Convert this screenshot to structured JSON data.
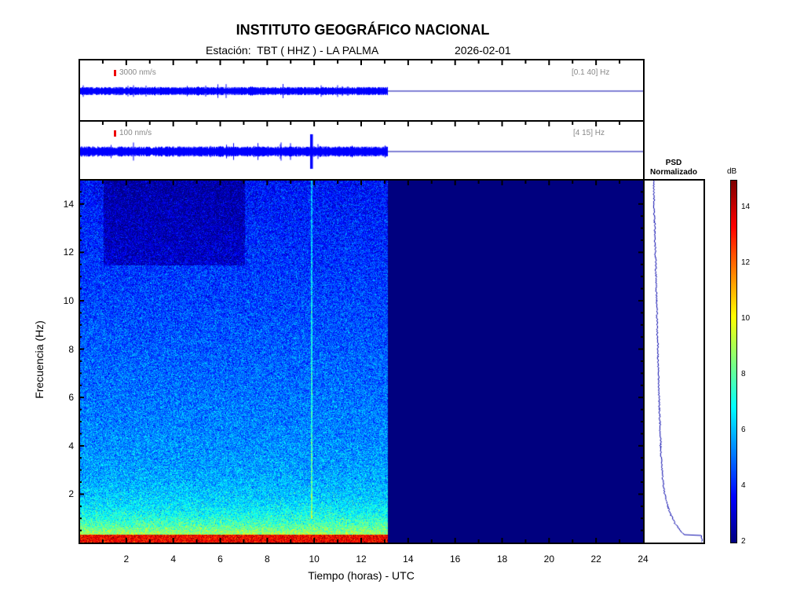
{
  "header": {
    "title": "INSTITUTO GEOGRÁFICO NACIONAL",
    "station": "Estación:  TBT ( HHZ ) - LA PALMA",
    "date": "2026-02-01"
  },
  "traces": [
    {
      "scale_label": "3000 nm/s",
      "band_label": "[0.1 40] Hz",
      "color": "#0000ff"
    },
    {
      "scale_label": "100 nm/s",
      "band_label": "[4 15] Hz",
      "color": "#0000ff"
    }
  ],
  "psd": {
    "title_line1": "PSD",
    "title_line2": "Normalizado",
    "color": "#0000aa"
  },
  "chart_data": {
    "type": "heatmap",
    "xlabel": "Tiempo (horas) - UTC",
    "ylabel": "Frecuencia  (Hz)",
    "xlim": [
      0,
      24
    ],
    "ylim": [
      0,
      15
    ],
    "xticks": [
      2,
      4,
      6,
      8,
      10,
      12,
      14,
      16,
      18,
      20,
      22,
      24
    ],
    "yticks": [
      2,
      4,
      6,
      8,
      10,
      12,
      14
    ],
    "data_end_hour": 13.1,
    "event_hour": 9.85,
    "colormap": "jet",
    "colorbar": {
      "label": "dB",
      "range": [
        2,
        15
      ],
      "ticks": [
        2,
        4,
        6,
        8,
        10,
        12,
        14
      ]
    }
  }
}
